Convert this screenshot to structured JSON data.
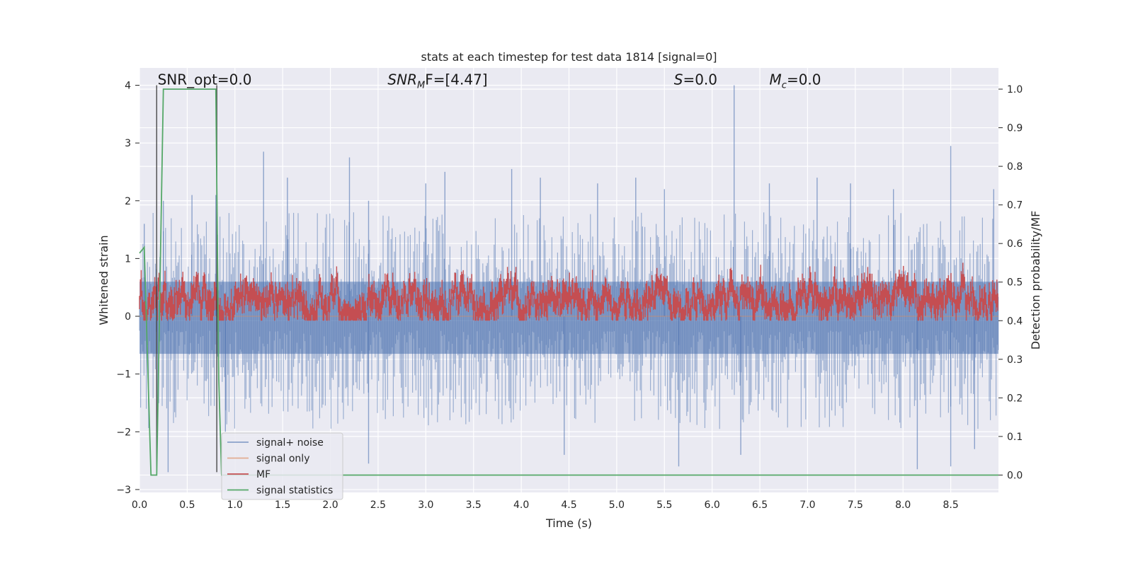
{
  "chart_data": {
    "type": "line",
    "title": "stats at each timestep for test data 1814 [signal=0]",
    "xlabel": "Time (s)",
    "ylabel": "Whitened strain",
    "y2label": "Detection probability/MF",
    "xlim": [
      0.0,
      9.0
    ],
    "ylim": [
      -3.05,
      4.3
    ],
    "y2lim": [
      -0.045,
      1.055
    ],
    "xticks": [
      "0.0",
      "0.5",
      "1.0",
      "1.5",
      "2.0",
      "2.5",
      "3.0",
      "3.5",
      "4.0",
      "4.5",
      "5.0",
      "5.5",
      "6.0",
      "6.5",
      "7.0",
      "7.5",
      "8.0",
      "8.5"
    ],
    "yticks": [
      "4",
      "3",
      "2",
      "1",
      "0",
      "−1",
      "−2",
      "−3"
    ],
    "y2ticks": [
      "1.0",
      "0.9",
      "0.8",
      "0.7",
      "0.6",
      "0.5",
      "0.4",
      "0.3",
      "0.2",
      "0.1",
      "0.0"
    ],
    "grid": true,
    "legend_position": "lower-left",
    "annotations": {
      "snr_opt": "SNR_opt=0.0",
      "snr_mf_base": "SNR",
      "snr_mf_sub": "M",
      "snr_mf_rest": "F=[4.47]",
      "s_base": "S",
      "s_rest": "=0.0",
      "mc_base": "M",
      "mc_sub": "c",
      "mc_rest": "=0.0"
    },
    "series": [
      {
        "name": "signal+ noise",
        "color": "#4c72b0",
        "band_range": [
          -2.7,
          4.0
        ],
        "peaks": [
          [
            0.05,
            1.6
          ],
          [
            0.25,
            2.0
          ],
          [
            0.55,
            2.1
          ],
          [
            0.8,
            2.1
          ],
          [
            1.3,
            2.85
          ],
          [
            1.55,
            2.4
          ],
          [
            2.2,
            2.75
          ],
          [
            2.4,
            2.0
          ],
          [
            3.0,
            2.3
          ],
          [
            3.2,
            2.5
          ],
          [
            3.9,
            2.55
          ],
          [
            4.2,
            2.4
          ],
          [
            4.8,
            2.3
          ],
          [
            5.2,
            2.4
          ],
          [
            5.5,
            2.2
          ],
          [
            6.23,
            4.0
          ],
          [
            6.6,
            2.3
          ],
          [
            7.1,
            2.4
          ],
          [
            7.45,
            2.3
          ],
          [
            7.9,
            2.2
          ],
          [
            8.5,
            2.95
          ],
          [
            8.95,
            2.2
          ]
        ],
        "troughs": [
          [
            0.3,
            -2.7
          ],
          [
            0.9,
            -2.0
          ],
          [
            2.4,
            -2.55
          ],
          [
            4.45,
            -2.4
          ],
          [
            5.65,
            -2.6
          ],
          [
            6.3,
            -2.4
          ],
          [
            8.15,
            -2.65
          ],
          [
            8.5,
            -2.6
          ],
          [
            8.75,
            -2.3
          ]
        ]
      },
      {
        "name": "signal only",
        "color": "#dd8452",
        "values": [
          0.0,
          0.0
        ]
      },
      {
        "name": "MF",
        "color": "#c44e52",
        "axis": "right",
        "band_range": [
          0.41,
          0.54
        ]
      },
      {
        "name": "signal statistics",
        "color": "#55a868",
        "axis": "right",
        "x": [
          0.0,
          0.05,
          0.12,
          0.18,
          0.25,
          0.3,
          0.8,
          0.83,
          0.86,
          9.0
        ],
        "y": [
          0.575,
          0.59,
          0.0,
          0.0,
          1.0,
          1.0,
          1.0,
          0.25,
          0.0,
          0.0
        ]
      }
    ],
    "vlines": [
      0.18,
      0.81
    ]
  }
}
